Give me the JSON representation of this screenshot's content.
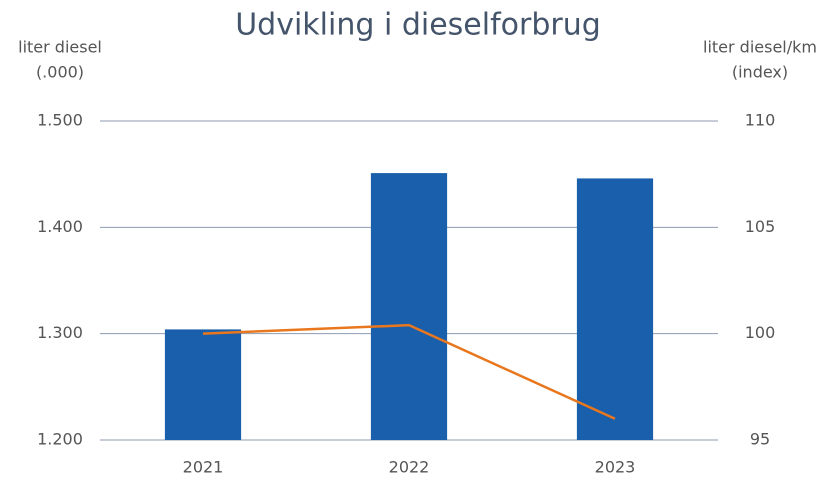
{
  "chart_data": {
    "type": "combo",
    "title": "Udvikling i dieselforbrug",
    "ylabel": [
      "liter diesel",
      "(.000)"
    ],
    "y2label": [
      "liter diesel/km",
      "(index)"
    ],
    "categories": [
      "2021",
      "2022",
      "2023"
    ],
    "series": [
      {
        "type": "bar",
        "color": "#1a5fac",
        "values": [
          1304,
          1451,
          1446
        ]
      },
      {
        "type": "line",
        "axis": "y2",
        "color": "#e8771e",
        "values": [
          100.0,
          100.4,
          96.0
        ]
      }
    ],
    "ylim": [
      1200,
      1500
    ],
    "yticks": [
      {
        "value": 1200,
        "label": "1.200"
      },
      {
        "value": 1300,
        "label": "1.300"
      },
      {
        "value": 1400,
        "label": "1.400"
      },
      {
        "value": 1500,
        "label": "1.500"
      }
    ],
    "y2lim": [
      95,
      110
    ],
    "y2ticks": [
      95,
      100,
      105,
      110
    ],
    "grid": true
  }
}
